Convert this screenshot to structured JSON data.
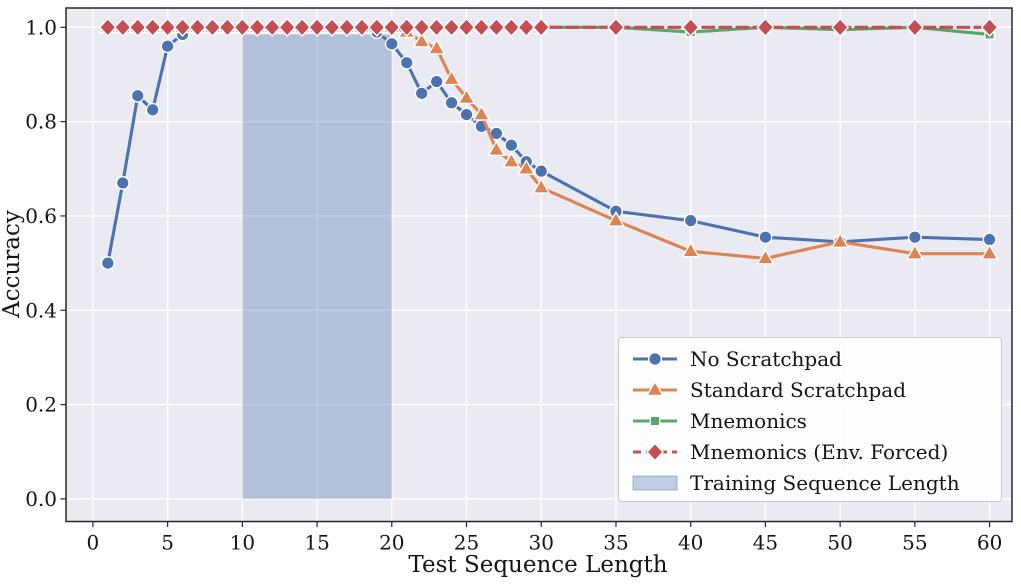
{
  "style": {
    "figure_bg": "#ffffff",
    "plot_bg": "#eaeaf2",
    "grid_color": "#ffffff",
    "spine_color": "#262626",
    "text_color": "#141414",
    "legend_bg": "rgba(255,255,255,0.88)",
    "legend_border": "#c9c9c9"
  },
  "chart_data": {
    "type": "line",
    "title": "",
    "xlabel": "Test Sequence Length",
    "ylabel": "Accuracy",
    "xlim": [
      -1.8,
      61.5
    ],
    "ylim": [
      -0.048,
      1.041
    ],
    "grid": true,
    "legend_position": "lower right",
    "xticks": [
      0,
      5,
      10,
      15,
      20,
      25,
      30,
      35,
      40,
      45,
      50,
      55,
      60
    ],
    "yticks": [
      {
        "v": 0.0,
        "label": "0.0"
      },
      {
        "v": 0.2,
        "label": "0.2"
      },
      {
        "v": 0.4,
        "label": "0.4"
      },
      {
        "v": 0.6,
        "label": "0.6"
      },
      {
        "v": 0.8,
        "label": "0.8"
      },
      {
        "v": 1.0,
        "label": "1.0"
      }
    ],
    "x": [
      1,
      2,
      3,
      4,
      5,
      6,
      7,
      8,
      9,
      10,
      11,
      12,
      13,
      14,
      15,
      16,
      17,
      18,
      19,
      20,
      21,
      22,
      23,
      24,
      25,
      26,
      27,
      28,
      29,
      30,
      35,
      40,
      45,
      50,
      55,
      60
    ],
    "band": {
      "label": "Training Sequence Length",
      "x0": 10,
      "x1": 20,
      "y0": 0.0,
      "y1": 0.985,
      "color": "#4c72b0",
      "opacity": 0.35
    },
    "series": [
      {
        "name": "No Scratchpad",
        "color": "#4c72b0",
        "marker": "circle",
        "dash": "solid",
        "values": [
          0.5,
          0.67,
          0.855,
          0.825,
          0.96,
          0.985,
          1.0,
          1.0,
          1.0,
          1.0,
          1.0,
          1.0,
          1.0,
          1.0,
          1.0,
          1.0,
          1.0,
          1.0,
          0.99,
          0.965,
          0.925,
          0.86,
          0.885,
          0.84,
          0.815,
          0.79,
          0.775,
          0.75,
          0.715,
          0.695,
          0.61,
          0.59,
          0.555,
          0.545,
          0.555,
          0.55
        ]
      },
      {
        "name": "Standard Scratchpad",
        "color": "#dd8452",
        "marker": "triangle",
        "dash": "solid",
        "values": [
          1.0,
          1.0,
          1.0,
          1.0,
          1.0,
          1.0,
          1.0,
          1.0,
          1.0,
          1.0,
          1.0,
          1.0,
          1.0,
          1.0,
          1.0,
          1.0,
          1.0,
          1.0,
          1.0,
          1.0,
          0.99,
          0.97,
          0.955,
          0.89,
          0.85,
          0.815,
          0.74,
          0.715,
          0.7,
          0.66,
          0.59,
          0.525,
          0.51,
          0.545,
          0.52,
          0.52
        ]
      },
      {
        "name": "Mnemonics",
        "color": "#55a868",
        "marker": "square",
        "dash": "solid",
        "values": [
          1.0,
          1.0,
          1.0,
          1.0,
          1.0,
          1.0,
          1.0,
          1.0,
          1.0,
          1.0,
          1.0,
          1.0,
          1.0,
          1.0,
          1.0,
          1.0,
          1.0,
          1.0,
          1.0,
          1.0,
          1.0,
          1.0,
          1.0,
          1.0,
          1.0,
          1.0,
          1.0,
          1.0,
          1.0,
          1.0,
          1.0,
          0.99,
          1.0,
          0.995,
          1.0,
          0.985
        ]
      },
      {
        "name": "Mnemonics (Env. Forced)",
        "color": "#c44e52",
        "marker": "diamond",
        "dash": "dashed",
        "values": [
          1.0,
          1.0,
          1.0,
          1.0,
          1.0,
          1.0,
          1.0,
          1.0,
          1.0,
          1.0,
          1.0,
          1.0,
          1.0,
          1.0,
          1.0,
          1.0,
          1.0,
          1.0,
          1.0,
          1.0,
          1.0,
          1.0,
          1.0,
          1.0,
          1.0,
          1.0,
          1.0,
          1.0,
          1.0,
          1.0,
          1.0,
          1.0,
          1.0,
          1.0,
          1.0,
          1.0
        ]
      }
    ],
    "legend": {
      "entries": [
        {
          "label": "No Scratchpad",
          "type": "line",
          "marker": "circle",
          "dash": "solid",
          "color": "#4c72b0"
        },
        {
          "label": "Standard Scratchpad",
          "type": "line",
          "marker": "triangle",
          "dash": "solid",
          "color": "#dd8452"
        },
        {
          "label": "Mnemonics",
          "type": "line",
          "marker": "square",
          "dash": "solid",
          "color": "#55a868"
        },
        {
          "label": "Mnemonics (Env. Forced)",
          "type": "line",
          "marker": "diamond",
          "dash": "dashed",
          "color": "#c44e52"
        },
        {
          "label": "Training Sequence Length",
          "type": "patch",
          "color": "#4c72b0",
          "opacity": 0.35
        }
      ]
    }
  }
}
